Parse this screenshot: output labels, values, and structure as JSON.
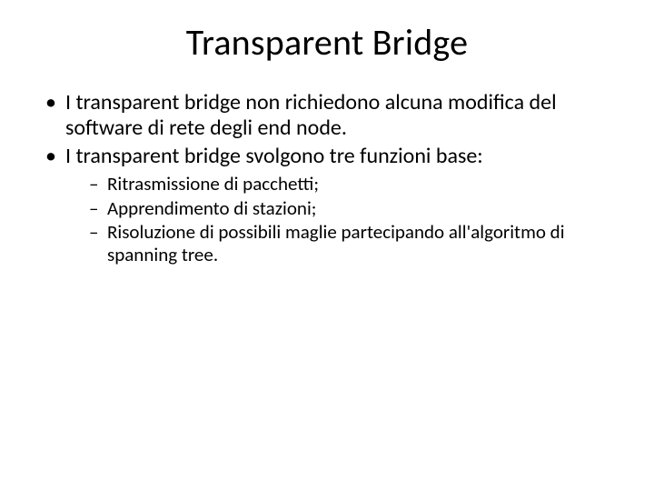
{
  "title": "Transparent Bridge",
  "bullets": [
    "I transparent bridge non richiedono alcuna modifica del software di rete degli end node.",
    "I transparent bridge svolgono tre funzioni base:"
  ],
  "subbullets": [
    "Ritrasmissione di pacchetti;",
    "Apprendimento di stazioni;",
    "Risoluzione di possibili maglie partecipando all'algoritmo di spanning tree."
  ],
  "colors": {
    "background": "#ffffff",
    "text": "#000000"
  },
  "fonts": {
    "title_size_pt": 40,
    "bullet_size_pt": 24,
    "subbullet_size_pt": 21,
    "family": "Calibri"
  }
}
